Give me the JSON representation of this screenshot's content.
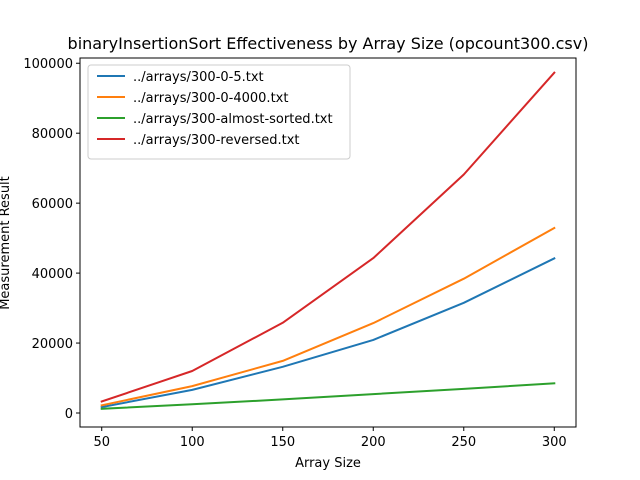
{
  "chart_data": {
    "type": "line",
    "title": "binaryInsertionSort Effectiveness by Array Size (opcount300.csv)",
    "xlabel": "Array Size",
    "ylabel": "Measurement Result",
    "x": [
      50,
      100,
      150,
      200,
      250,
      300
    ],
    "xlim": [
      38,
      312
    ],
    "ylim": [
      -4000,
      101500
    ],
    "xticks": [
      50,
      100,
      150,
      200,
      250,
      300
    ],
    "yticks": [
      0,
      20000,
      40000,
      60000,
      80000,
      100000
    ],
    "grid": false,
    "legend_position": "top-left",
    "series": [
      {
        "name": "../arrays/300-0-5.txt",
        "color": "#1f77b4",
        "values": [
          1700,
          6600,
          13200,
          20900,
          31500,
          44200
        ]
      },
      {
        "name": "../arrays/300-0-4000.txt",
        "color": "#ff7f0e",
        "values": [
          2200,
          7700,
          14900,
          25700,
          38400,
          52900
        ]
      },
      {
        "name": "../arrays/300-almost-sorted.txt",
        "color": "#2ca02c",
        "values": [
          1200,
          2500,
          3900,
          5400,
          6900,
          8500
        ]
      },
      {
        "name": "../arrays/300-reversed.txt",
        "color": "#d62728",
        "values": [
          3300,
          12000,
          25800,
          44300,
          68200,
          97300
        ]
      }
    ]
  }
}
